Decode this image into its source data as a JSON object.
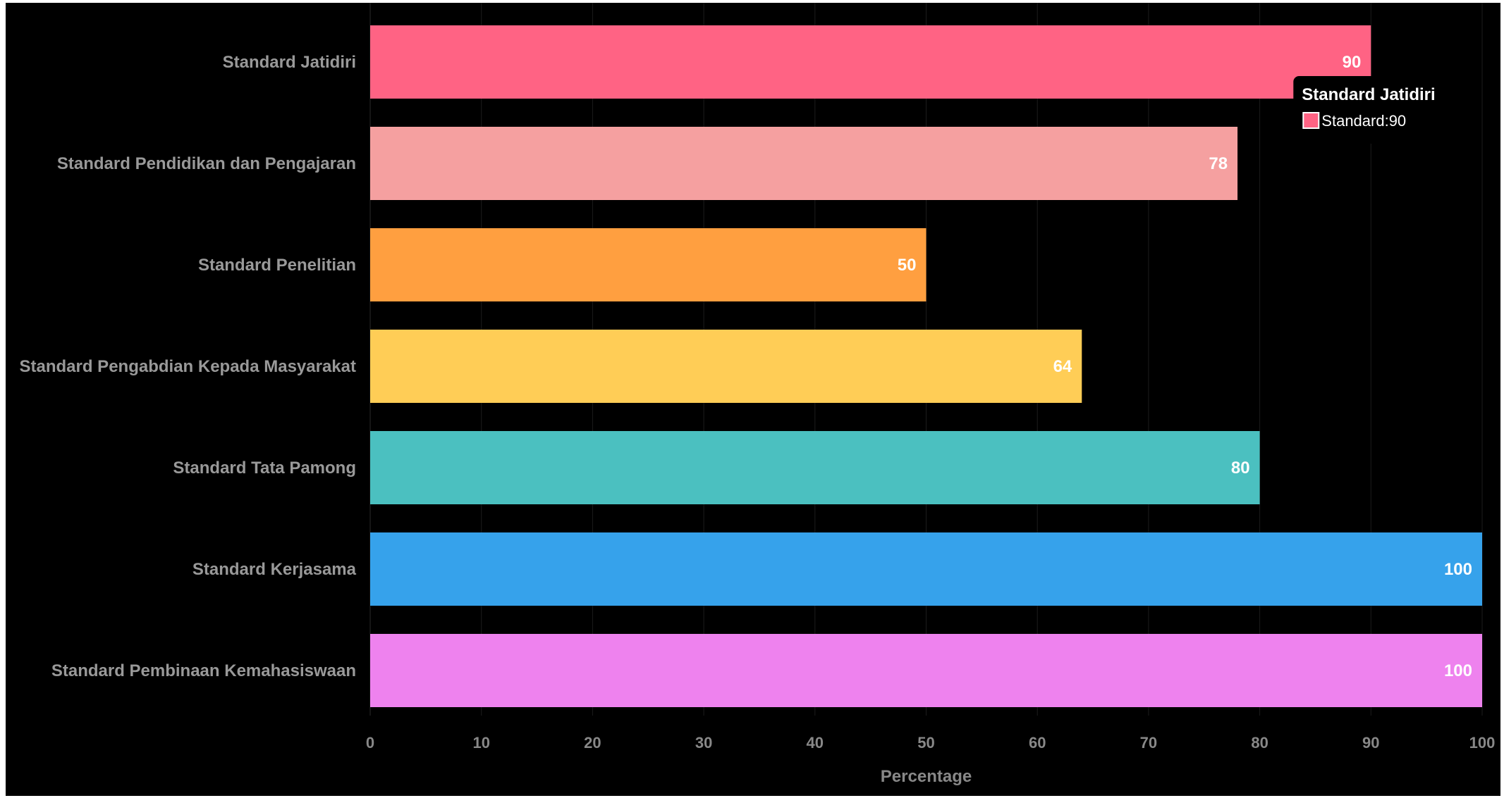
{
  "chart_data": {
    "type": "bar",
    "orientation": "horizontal",
    "categories": [
      "Standard Jatidiri",
      "Standard Pendidikan dan Pengajaran",
      "Standard Penelitian",
      "Standard Pengabdian Kepada Masyarakat",
      "Standard Tata Pamong",
      "Standard Kerjasama",
      "Standard Pembinaan Kemahasiswaan"
    ],
    "series": [
      {
        "name": "Standard",
        "values": [
          90,
          78,
          50,
          64,
          80,
          100,
          100
        ]
      }
    ],
    "colors": [
      "#ff6384",
      "#f5a0a0",
      "#ff9f40",
      "#ffcd56",
      "#4bc0c0",
      "#36a2eb",
      "#ee82ee"
    ],
    "xlabel": "Percentage",
    "ylabel": "",
    "xlim": [
      0,
      100
    ],
    "xticks": [
      "0",
      "10",
      "20",
      "30",
      "40",
      "50",
      "60",
      "70",
      "80",
      "90",
      "100"
    ],
    "data_labels": [
      "90",
      "78",
      "50",
      "64",
      "80",
      "100",
      "100"
    ],
    "grid": true,
    "background": "#000000"
  },
  "tooltip": {
    "title": "Standard Jatidiri",
    "entry": "Standard:90",
    "color": "#ff6384"
  }
}
